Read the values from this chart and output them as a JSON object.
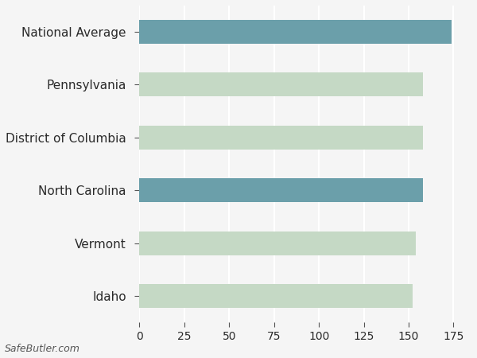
{
  "categories": [
    "Idaho",
    "Vermont",
    "North Carolina",
    "District of Columbia",
    "Pennsylvania",
    "National Average"
  ],
  "values": [
    152,
    154,
    158,
    158,
    158,
    174
  ],
  "bar_colors": [
    "#c5d9c5",
    "#c5d9c5",
    "#6b9faa",
    "#c5d9c5",
    "#c5d9c5",
    "#6b9faa"
  ],
  "background_color": "#f5f5f5",
  "xlim": [
    0,
    185
  ],
  "xticks": [
    0,
    25,
    50,
    75,
    100,
    125,
    150,
    175
  ],
  "grid_color": "#ffffff",
  "bar_height": 0.45,
  "watermark": "SafeButler.com",
  "font_size": 11,
  "tick_color": "#555555"
}
